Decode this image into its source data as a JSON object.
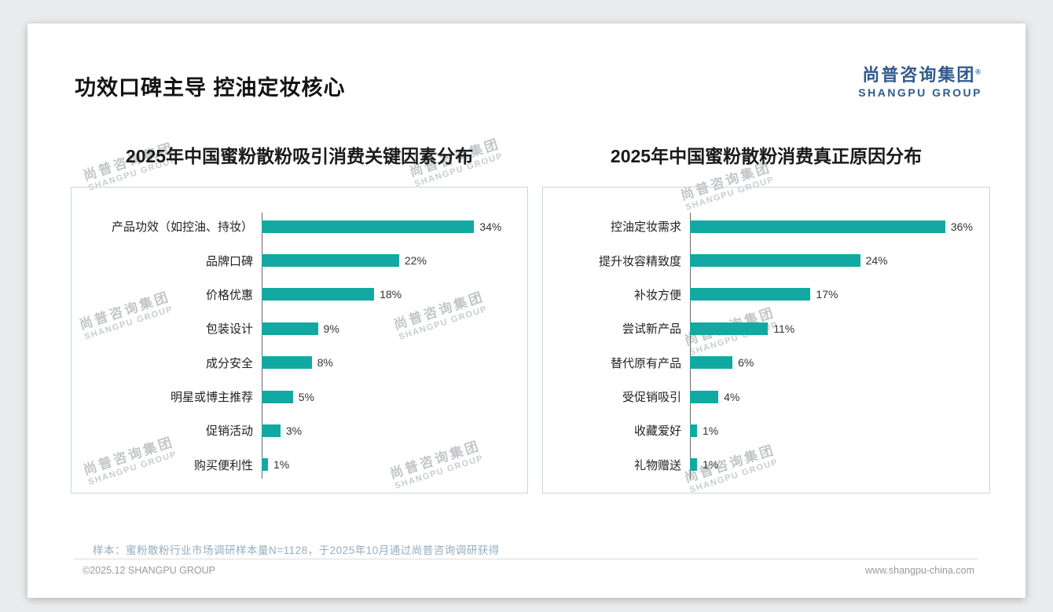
{
  "page": {
    "title": "功效口碑主导 控油定妆核心",
    "logo": {
      "cn": "尚普咨询集团",
      "reg": "®",
      "en": "SHANGPU GROUP"
    },
    "sample_note": "样本：蜜粉散粉行业市场调研样本量N=1128，于2025年10月通过尚普咨询调研获得",
    "footer_left": "©2025.12 SHANGPU GROUP",
    "footer_right": "www.shangpu-china.com",
    "watermark": {
      "line1": "尚普咨询集团",
      "line2": "SHANGPU GROUP"
    }
  },
  "colors": {
    "bar_teal": "#11a9a1",
    "brand_blue": "#315a8c",
    "note_gray_blue": "#96adbe"
  },
  "chart_data": [
    {
      "type": "bar",
      "orientation": "horizontal",
      "title": "2025年中国蜜粉散粉吸引消费关键因素分布",
      "categories": [
        "产品功效（如控油、持妆）",
        "品牌口碑",
        "价格优惠",
        "包装设计",
        "成分安全",
        "明星或博主推荐",
        "促销活动",
        "购买便利性"
      ],
      "values": [
        34,
        22,
        18,
        9,
        8,
        5,
        3,
        1
      ],
      "unit": "%",
      "xlim": [
        0,
        40
      ],
      "bar_color": "#11a9a1",
      "grid": false,
      "legend": false
    },
    {
      "type": "bar",
      "orientation": "horizontal",
      "title": "2025年中国蜜粉散粉消费真正原因分布",
      "categories": [
        "控油定妆需求",
        "提升妆容精致度",
        "补妆方便",
        "尝试新产品",
        "替代原有产品",
        "受促销吸引",
        "收藏爱好",
        "礼物赠送"
      ],
      "values": [
        36,
        24,
        17,
        11,
        6,
        4,
        1,
        1
      ],
      "unit": "%",
      "xlim": [
        0,
        40
      ],
      "bar_color": "#11a9a1",
      "grid": false,
      "legend": false
    }
  ]
}
